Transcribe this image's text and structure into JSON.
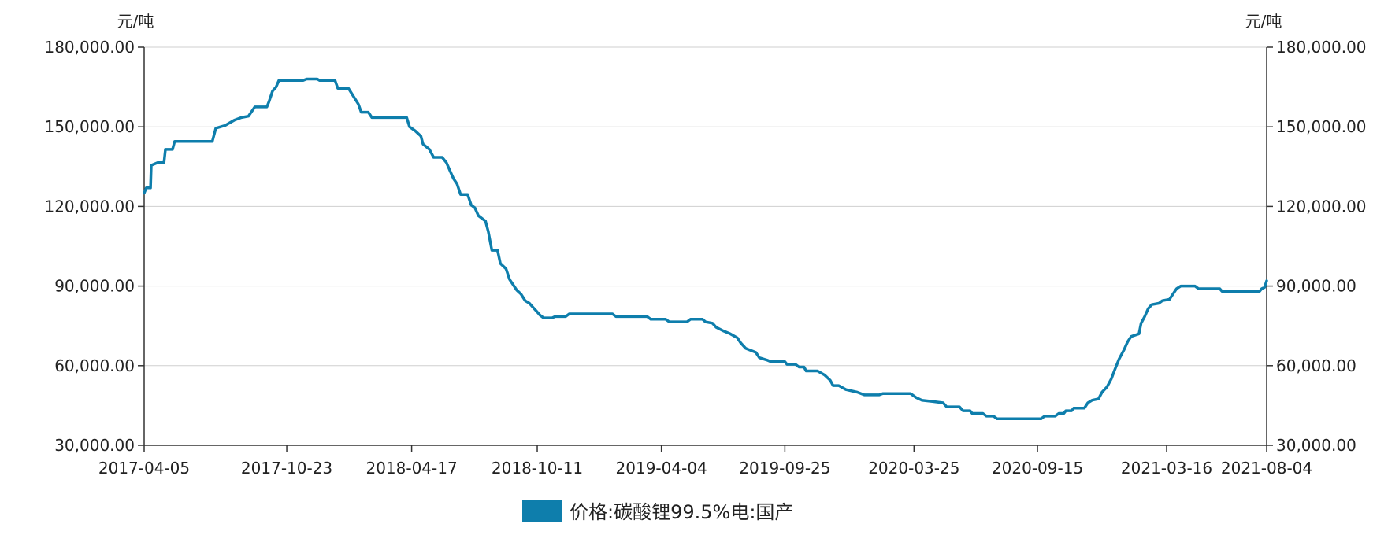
{
  "chart_data": {
    "type": "line",
    "unit_left": "元/吨",
    "unit_right": "元/吨",
    "ylim": [
      30000,
      180000
    ],
    "yticks": [
      180000,
      150000,
      120000,
      90000,
      60000,
      30000
    ],
    "ytick_labels": [
      "180,000.00",
      "150,000.00",
      "120,000.00",
      "90,000.00",
      "60,000.00",
      "30,000.00"
    ],
    "xlim": [
      "2017-04-05",
      "2021-08-04"
    ],
    "xticks": [
      "2017-04-05",
      "2017-10-23",
      "2018-04-17",
      "2018-10-11",
      "2019-04-04",
      "2019-09-25",
      "2020-03-25",
      "2020-09-15",
      "2021-03-16",
      "2021-08-04"
    ],
    "grid": true,
    "legend_position": "bottom-center",
    "series": [
      {
        "name": "价格:碳酸锂99.5%电:国产",
        "color": "#0e7eac",
        "points": [
          [
            "2017-04-05",
            125000
          ],
          [
            "2017-04-08",
            127000
          ],
          [
            "2017-04-14",
            127000
          ],
          [
            "2017-04-15",
            135500
          ],
          [
            "2017-04-24",
            136500
          ],
          [
            "2017-05-03",
            136500
          ],
          [
            "2017-05-05",
            141500
          ],
          [
            "2017-05-15",
            141500
          ],
          [
            "2017-05-18",
            144500
          ],
          [
            "2017-07-10",
            144500
          ],
          [
            "2017-07-15",
            149500
          ],
          [
            "2017-07-28",
            150500
          ],
          [
            "2017-08-10",
            152500
          ],
          [
            "2017-08-20",
            153500
          ],
          [
            "2017-08-30",
            154000
          ],
          [
            "2017-09-08",
            157500
          ],
          [
            "2017-09-25",
            157500
          ],
          [
            "2017-09-28",
            159500
          ],
          [
            "2017-10-03",
            163500
          ],
          [
            "2017-10-08",
            165000
          ],
          [
            "2017-10-12",
            167500
          ],
          [
            "2017-11-15",
            167500
          ],
          [
            "2017-11-20",
            168000
          ],
          [
            "2017-12-05",
            168000
          ],
          [
            "2017-12-08",
            167500
          ],
          [
            "2017-12-30",
            167500
          ],
          [
            "2018-01-03",
            164500
          ],
          [
            "2018-01-18",
            164500
          ],
          [
            "2018-01-25",
            161500
          ],
          [
            "2018-02-01",
            158500
          ],
          [
            "2018-02-05",
            155500
          ],
          [
            "2018-02-15",
            155500
          ],
          [
            "2018-02-20",
            153500
          ],
          [
            "2018-04-10",
            153500
          ],
          [
            "2018-04-14",
            150000
          ],
          [
            "2018-04-22",
            148500
          ],
          [
            "2018-04-30",
            146500
          ],
          [
            "2018-05-03",
            143500
          ],
          [
            "2018-05-12",
            141500
          ],
          [
            "2018-05-18",
            138500
          ],
          [
            "2018-05-30",
            138500
          ],
          [
            "2018-06-05",
            136500
          ],
          [
            "2018-06-10",
            133500
          ],
          [
            "2018-06-15",
            130500
          ],
          [
            "2018-06-20",
            128500
          ],
          [
            "2018-06-25",
            124500
          ],
          [
            "2018-07-05",
            124500
          ],
          [
            "2018-07-10",
            120500
          ],
          [
            "2018-07-15",
            119500
          ],
          [
            "2018-07-20",
            116500
          ],
          [
            "2018-07-30",
            114500
          ],
          [
            "2018-08-03",
            110500
          ],
          [
            "2018-08-08",
            103500
          ],
          [
            "2018-08-16",
            103500
          ],
          [
            "2018-08-20",
            98500
          ],
          [
            "2018-08-28",
            96500
          ],
          [
            "2018-09-02",
            92500
          ],
          [
            "2018-09-07",
            90500
          ],
          [
            "2018-09-12",
            88500
          ],
          [
            "2018-09-18",
            87000
          ],
          [
            "2018-09-24",
            84500
          ],
          [
            "2018-09-30",
            83500
          ],
          [
            "2018-10-05",
            82000
          ],
          [
            "2018-10-10",
            80500
          ],
          [
            "2018-10-15",
            79000
          ],
          [
            "2018-10-20",
            78000
          ],
          [
            "2018-11-01",
            78000
          ],
          [
            "2018-11-05",
            78500
          ],
          [
            "2018-11-20",
            78500
          ],
          [
            "2018-11-25",
            79500
          ],
          [
            "2019-01-25",
            79500
          ],
          [
            "2019-01-30",
            78500
          ],
          [
            "2019-03-15",
            78500
          ],
          [
            "2019-03-20",
            77500
          ],
          [
            "2019-04-10",
            77500
          ],
          [
            "2019-04-15",
            76500
          ],
          [
            "2019-05-10",
            76500
          ],
          [
            "2019-05-15",
            77500
          ],
          [
            "2019-06-01",
            77500
          ],
          [
            "2019-06-05",
            76500
          ],
          [
            "2019-06-15",
            76000
          ],
          [
            "2019-06-20",
            74500
          ],
          [
            "2019-07-01",
            73000
          ],
          [
            "2019-07-10",
            72000
          ],
          [
            "2019-07-20",
            70500
          ],
          [
            "2019-07-25",
            68500
          ],
          [
            "2019-08-01",
            66500
          ],
          [
            "2019-08-15",
            65000
          ],
          [
            "2019-08-20",
            63000
          ],
          [
            "2019-09-01",
            62000
          ],
          [
            "2019-09-05",
            61500
          ],
          [
            "2019-09-25",
            61500
          ],
          [
            "2019-09-28",
            60500
          ],
          [
            "2019-10-10",
            60500
          ],
          [
            "2019-10-15",
            59500
          ],
          [
            "2019-10-22",
            59500
          ],
          [
            "2019-10-25",
            58000
          ],
          [
            "2019-11-10",
            58000
          ],
          [
            "2019-11-20",
            56500
          ],
          [
            "2019-11-28",
            54500
          ],
          [
            "2019-12-02",
            52500
          ],
          [
            "2019-12-10",
            52500
          ],
          [
            "2019-12-20",
            51000
          ],
          [
            "2020-01-05",
            50000
          ],
          [
            "2020-01-15",
            49000
          ],
          [
            "2020-02-05",
            49000
          ],
          [
            "2020-02-10",
            49500
          ],
          [
            "2020-03-20",
            49500
          ],
          [
            "2020-03-28",
            48000
          ],
          [
            "2020-04-05",
            47000
          ],
          [
            "2020-04-20",
            46500
          ],
          [
            "2020-05-05",
            46000
          ],
          [
            "2020-05-10",
            44500
          ],
          [
            "2020-05-28",
            44500
          ],
          [
            "2020-06-02",
            43000
          ],
          [
            "2020-06-12",
            43000
          ],
          [
            "2020-06-15",
            42000
          ],
          [
            "2020-06-30",
            42000
          ],
          [
            "2020-07-05",
            41000
          ],
          [
            "2020-07-15",
            41000
          ],
          [
            "2020-07-20",
            40000
          ],
          [
            "2020-09-20",
            40000
          ],
          [
            "2020-09-25",
            41000
          ],
          [
            "2020-10-10",
            41000
          ],
          [
            "2020-10-15",
            42000
          ],
          [
            "2020-10-22",
            42000
          ],
          [
            "2020-10-25",
            43000
          ],
          [
            "2020-11-02",
            43000
          ],
          [
            "2020-11-05",
            44000
          ],
          [
            "2020-11-20",
            44000
          ],
          [
            "2020-11-25",
            46000
          ],
          [
            "2020-12-01",
            47000
          ],
          [
            "2020-12-10",
            47500
          ],
          [
            "2020-12-15",
            50000
          ],
          [
            "2020-12-22",
            52000
          ],
          [
            "2020-12-28",
            55000
          ],
          [
            "2021-01-02",
            58500
          ],
          [
            "2021-01-08",
            62500
          ],
          [
            "2021-01-15",
            66000
          ],
          [
            "2021-01-20",
            69000
          ],
          [
            "2021-01-25",
            71000
          ],
          [
            "2021-02-05",
            72000
          ],
          [
            "2021-02-08",
            76000
          ],
          [
            "2021-02-13",
            78500
          ],
          [
            "2021-02-18",
            81500
          ],
          [
            "2021-02-23",
            83000
          ],
          [
            "2021-03-05",
            83500
          ],
          [
            "2021-03-10",
            84500
          ],
          [
            "2021-03-20",
            85000
          ],
          [
            "2021-03-25",
            87000
          ],
          [
            "2021-03-30",
            89000
          ],
          [
            "2021-04-05",
            90000
          ],
          [
            "2021-04-25",
            90000
          ],
          [
            "2021-04-30",
            89000
          ],
          [
            "2021-05-30",
            89000
          ],
          [
            "2021-06-02",
            88000
          ],
          [
            "2021-07-25",
            88000
          ],
          [
            "2021-07-28",
            89000
          ],
          [
            "2021-08-01",
            89500
          ],
          [
            "2021-08-04",
            92000
          ]
        ]
      }
    ]
  }
}
